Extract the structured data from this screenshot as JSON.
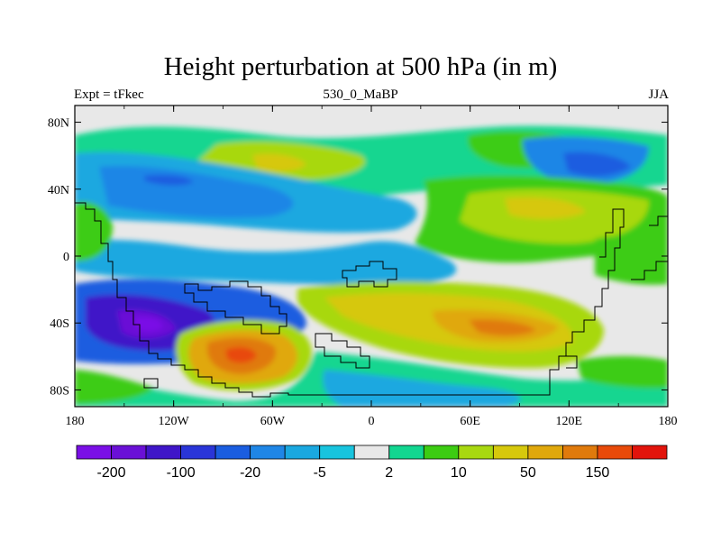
{
  "title": "Height perturbation at 500 hPa (in m)",
  "left_label": "Expt = tFkec",
  "center_label": "530_0_MaBP",
  "right_label": "JJA",
  "x_ticks": [
    "180",
    "120W",
    "60W",
    "0",
    "60E",
    "120E",
    "180"
  ],
  "y_ticks": [
    "80N",
    "40N",
    "0",
    "40S",
    "80S"
  ],
  "colorbar": {
    "colors": [
      "#7a0fe6",
      "#6a10d6",
      "#3f16c8",
      "#2a35d8",
      "#1a5de0",
      "#1f86e6",
      "#1aa8e0",
      "#18c4de",
      "#e8e8e8",
      "#12d690",
      "#3ccc12",
      "#a8d810",
      "#d6c80c",
      "#e0a80c",
      "#e07a0c",
      "#e84a0a",
      "#e2140c"
    ],
    "labels": [
      "-200",
      "-100",
      "-20",
      "-5",
      "2",
      "10",
      "50",
      "150"
    ]
  }
}
